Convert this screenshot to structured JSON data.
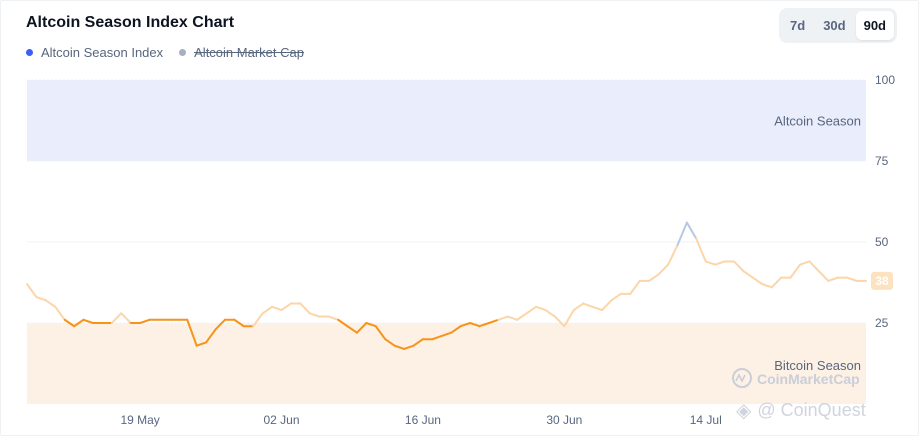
{
  "header": {
    "title": "Altcoin Season Index Chart",
    "ranges": [
      "7d",
      "30d",
      "90d"
    ],
    "active_range": "90d"
  },
  "legend": {
    "items": [
      {
        "label": "Altcoin Season Index",
        "color": "#3861fb",
        "struck": false
      },
      {
        "label": "Altcoin Market Cap",
        "color": "#a6b0c3",
        "struck": true
      }
    ]
  },
  "zones": {
    "altcoin_label": "Altcoin Season",
    "bitcoin_label": "Bitcoin Season",
    "altcoin_color": "#eaedfc",
    "bitcoin_color": "#fdf1e6"
  },
  "branding": {
    "cmc": "CoinMarketCap",
    "overlay": "@ CoinQuest"
  },
  "chart_data": {
    "type": "line",
    "title": "Altcoin Season Index Chart",
    "x_tick_labels": [
      "19 May",
      "02 Jun",
      "16 Jun",
      "30 Jun",
      "14 Jul"
    ],
    "y_tick_labels": [
      "100",
      "75",
      "50",
      "25"
    ],
    "ylim": [
      0,
      100
    ],
    "current_value": "38",
    "colors": {
      "bitcoin_zone_line": "#f7931a",
      "neutral_line": "#fcd5a8",
      "peak_line": "#b9c7e6"
    },
    "series": [
      {
        "name": "Altcoin Season Index",
        "x": [
          0,
          1,
          2,
          3,
          4,
          5,
          6,
          7,
          8,
          9,
          10,
          11,
          12,
          13,
          14,
          15,
          16,
          17,
          18,
          19,
          20,
          21,
          22,
          23,
          24,
          25,
          26,
          27,
          28,
          29,
          30,
          31,
          32,
          33,
          34,
          35,
          36,
          37,
          38,
          39,
          40,
          41,
          42,
          43,
          44,
          45,
          46,
          47,
          48,
          49,
          50,
          51,
          52,
          53,
          54,
          55,
          56,
          57,
          58,
          59,
          60,
          61,
          62,
          63,
          64,
          65,
          66,
          67,
          68,
          69,
          70,
          71,
          72,
          73,
          74,
          75,
          76,
          77,
          78,
          79,
          80,
          81,
          82,
          83,
          84,
          85,
          86,
          87,
          88,
          89
        ],
        "values": [
          37,
          33,
          32,
          30,
          26,
          24,
          26,
          25,
          25,
          25,
          28,
          25,
          25,
          26,
          26,
          26,
          26,
          26,
          18,
          19,
          23,
          26,
          26,
          24,
          24,
          28,
          30,
          29,
          31,
          31,
          28,
          27,
          27,
          26,
          24,
          22,
          25,
          24,
          20,
          18,
          17,
          18,
          20,
          20,
          21,
          22,
          24,
          25,
          24,
          25,
          26,
          27,
          26,
          28,
          30,
          29,
          27,
          24,
          29,
          31,
          30,
          29,
          32,
          34,
          34,
          38,
          38,
          40,
          43,
          49,
          56,
          51,
          44,
          43,
          44,
          44,
          41,
          39,
          37,
          36,
          39,
          39,
          43,
          44,
          41,
          38,
          39,
          39,
          38,
          38
        ]
      }
    ]
  }
}
